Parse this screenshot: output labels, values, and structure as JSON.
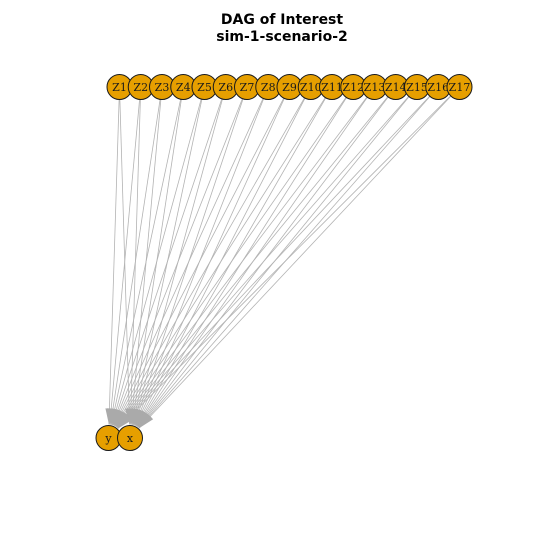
{
  "title": {
    "line1": "DAG of Interest",
    "line2": "sim-1-scenario-2"
  },
  "colors": {
    "node_fill": "#E69F00",
    "node_stroke": "#1a1a1a",
    "edge": "#b3b3b3",
    "background": "#ffffff"
  },
  "diagram": {
    "source_nodes": [
      "Z1",
      "Z2",
      "Z3",
      "Z4",
      "Z5",
      "Z6",
      "Z7",
      "Z8",
      "Z9",
      "Z10",
      "Z11",
      "Z12",
      "Z13",
      "Z14",
      "Z15",
      "Z16",
      "Z17"
    ],
    "target_nodes": [
      "y",
      "x"
    ],
    "edges_from_each_source_to": [
      "y",
      "x"
    ]
  }
}
